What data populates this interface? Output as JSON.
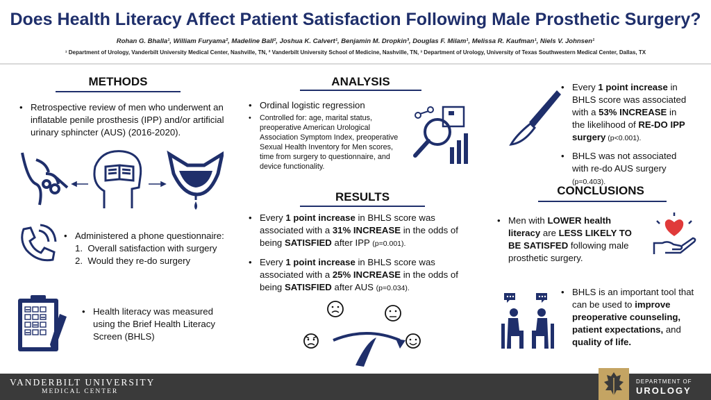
{
  "header": {
    "title": "Does Health Literacy Affect Patient Satisfaction Following Male Prosthetic Surgery?",
    "authors": "Rohan G. Bhalla¹, William Furyama², Madeline Ball², Joshua K. Calvert¹, Benjamin M. Dropkin³, Douglas F. Milam¹, Melissa R. Kaufman¹, Niels V. Johnsen¹",
    "affiliations": "¹ Department of Urology, Vanderbilt University Medical Center, Nashville, TN, ² Vanderbilt University School of Medicine, Nashville, TN, ³ Department of Urology, University of Texas Southwestern Medical Center, Dallas, TX"
  },
  "methods": {
    "heading": "METHODS",
    "review": "Retrospective review of men who underwent an inflatable penile prosthesis (IPP) and/or artificial urinary sphincter (AUS) (2016-2020).",
    "questionnaire": "Administered a phone questionnaire:",
    "q1_num": "1.",
    "q1": "Overall satisfaction with surgery",
    "q2_num": "2.",
    "q2": "Would they re-do surgery",
    "literacy": "Health literacy was measured using the Brief Health Literacy Screen (BHLS)"
  },
  "analysis": {
    "heading": "ANALYSIS",
    "item1": "Ordinal logistic regression",
    "item2": "Controlled for: age, marital status, preoperative American Urological Association Symptom Index, preoperative Sexual Health Inventory for Men scores, time from surgery to questionnaire, and device functionality."
  },
  "results": {
    "heading": "RESULTS",
    "r1_pre": "Every ",
    "r1_b1": "1 point increase",
    "r1_mid": " in BHLS score was associated with a ",
    "r1_b2": "31% INCREASE",
    "r1_mid2": " in the odds of being ",
    "r1_b3": "SATISFIED",
    "r1_post": " after IPP ",
    "r1_p": "(p=0.001).",
    "r2_pre": "Every ",
    "r2_b1": "1 point increase",
    "r2_mid": " in BHLS score was associated with a ",
    "r2_b2": "25% INCREASE",
    "r2_mid2": " in the odds of being ",
    "r2_b3": "SATISFIED",
    "r2_post": " after AUS ",
    "r2_p": "(p=0.034)."
  },
  "redo": {
    "a_pre": "Every ",
    "a_b1": "1 point increase",
    "a_mid": " in BHLS score was associated with a ",
    "a_b2": "53% INCREASE",
    "a_mid2": " in the likelihood of ",
    "a_b3": "RE-DO IPP surgery",
    "a_p": " (p<0.001).",
    "b_text": "BHLS was not associated with re-do AUS surgery ",
    "b_p": "(p=0.403)."
  },
  "conclusions": {
    "heading": "CONCLUSIONS",
    "c1_pre": "Men with ",
    "c1_b1": "LOWER health literacy",
    "c1_mid": " are ",
    "c1_b2": "LESS LIKELY TO BE SATISFED",
    "c1_post": " following male prosthetic surgery.",
    "c2_pre": "BHLS is an important tool that can be used to ",
    "c2_b1": "improve preoperative counseling, patient expectations,",
    "c2_mid": " and ",
    "c2_b2": "quality of life."
  },
  "footer": {
    "university": "VANDERBILT UNIVERSITY",
    "medical_center": "MEDICAL CENTER",
    "dept_line1": "DEPARTMENT OF",
    "dept_line2": "UROLOGY"
  },
  "icons": [
    "anatomy-icon",
    "brain-book-icon",
    "bladder-icon",
    "phone-icon",
    "clipboard-icon",
    "analytics-icon",
    "scalpel-icon",
    "satisfaction-gauge-icon",
    "heart-hand-icon",
    "counseling-icon",
    "vu-oak-leaf-icon"
  ],
  "colors": {
    "title": "#1f2f6b",
    "rule": "#1f2f6b",
    "footer": "#3a3a3a",
    "icon": "#1f2f6b",
    "heart": "#e03a3a",
    "gold": "#c4a463"
  }
}
